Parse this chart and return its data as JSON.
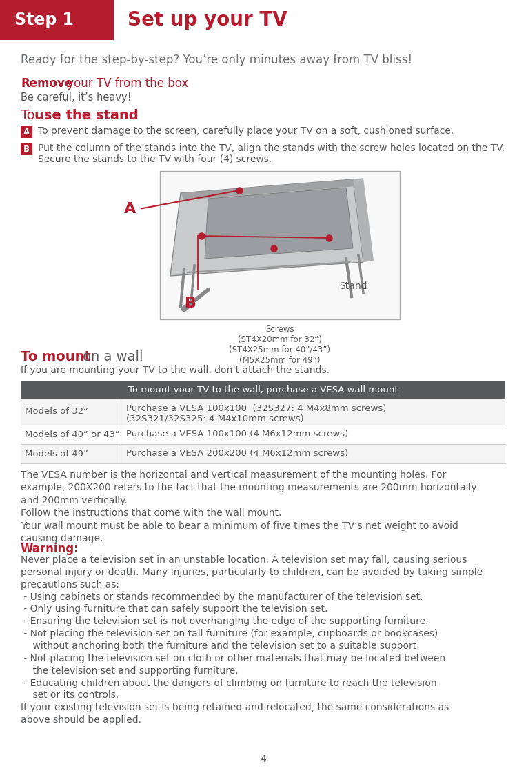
{
  "page_bg": "#ffffff",
  "step_box_color": "#b51c2e",
  "step_box_text": "Step 1",
  "title_text": "Set up your TV",
  "title_color": "#b51c2e",
  "subtitle_text": "Ready for the step-by-step? You’re only minutes away from TV bliss!",
  "subtitle_color": "#6d6e71",
  "remove_bold": "Remove",
  "remove_rest": " your TV from the box",
  "remove_color": "#b51c2e",
  "careful_text": "Be careful, it’s heavy!",
  "careful_color": "#58595b",
  "to_stand_to": "To ",
  "to_stand_bold": "use the stand",
  "to_stand_color": "#b51c2e",
  "bullet_a_text": "To prevent damage to the screen, carefully place your TV on a soft, cushioned surface.",
  "bullet_b_line1": "Put the column of the stands into the TV, align the stands with the screw holes located on the TV.",
  "bullet_b_line2": "Secure the stands to the TV with four (4) screws.",
  "bullet_color": "#b51c2e",
  "bullet_text_color": "#58595b",
  "screws_caption": "Screws\n(ST4X20mm for 32”)\n(ST4X25mm for 40”/43”)\n(M5X25mm for 49”)",
  "screws_caption_color": "#58595b",
  "to_mount_bold": "To mount",
  "to_mount_rest": "on a wall",
  "to_mount_color": "#b51c2e",
  "to_mount_rest_color": "#58595b",
  "mount_note": "If you are mounting your TV to the wall, don’t attach the stands.",
  "mount_note_color": "#58595b",
  "table_header_bg": "#58595b",
  "table_header_text": "To mount your TV to the wall, purchase a VESA wall mount",
  "table_header_color": "#ffffff",
  "table_row1_col1": "Models of 32”",
  "table_row1_col2a": "Purchase a VESA 100x100  (32S327: 4 M4x8mm screws)",
  "table_row1_col2b": "(32S321/32S325: 4 M4x10mm screws)",
  "table_row2_col1": "Models of 40” or 43”",
  "table_row2_col2": "Purchase a VESA 100x100 (4 M6x12mm screws)",
  "table_row3_col1": "Models of 49”",
  "table_row3_col2": "Purchase a VESA 200x200 (4 M6x12mm screws)",
  "table_text_color": "#58595b",
  "vesa_text": "The VESA number is the horizontal and vertical measurement of the mounting holes. For\nexample, 200X200 refers to the fact that the mounting measurements are 200mm horizontally\nand 200mm vertically.\nFollow the instructions that come with the wall mount.\nYour wall mount must be able to bear a minimum of five times the TV’s net weight to avoid\ncausing damage.",
  "vesa_text_color": "#58595b",
  "warning_bold": "Warning:",
  "warning_color": "#b51c2e",
  "warning_text": "Never place a television set in an unstable location. A television set may fall, causing serious\npersonal injury or death. Many injuries, particularly to children, can be avoided by taking simple\nprecautions such as:\n - Using cabinets or stands recommended by the manufacturer of the television set.\n - Only using furniture that can safely support the television set.\n - Ensuring the television set is not overhanging the edge of the supporting furniture.\n - Not placing the television set on tall furniture (for example, cupboards or bookcases)\n    without anchoring both the furniture and the television set to a suitable support.\n - Not placing the television set on cloth or other materials that may be located between\n    the television set and supporting furniture.\n - Educating children about the dangers of climbing on furniture to reach the television\n    set or its controls.\nIf your existing television set is being retained and relocated, the same considerations as\nabove should be applied.",
  "warning_text_color": "#58595b",
  "page_number": "4",
  "red": "#b51c2e",
  "gray": "#58595b",
  "lightgray": "#6d6e71",
  "divider": "#cccccc",
  "lm": 30,
  "rm": 733
}
